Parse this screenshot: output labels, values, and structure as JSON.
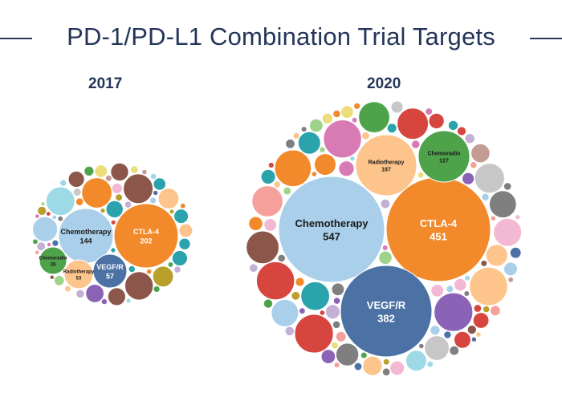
{
  "title": "PD-1/PD-L1 Combination Trial Targets",
  "chart_data": [
    {
      "type": "bubble",
      "title": "2017",
      "labeled_bubbles": [
        {
          "label": "Chemotherapy",
          "value": 144,
          "color": "#a9cfea"
        },
        {
          "label": "CTLA-4",
          "value": 202,
          "color": "#f28a2b"
        },
        {
          "label": "VEGF/R",
          "value": 57,
          "color": "#4c72a5"
        },
        {
          "label": "Radiotherapy",
          "value": 53,
          "color": "#fdc48c"
        },
        {
          "label": "Chemoradio",
          "value": 38,
          "color": "#4ea24a"
        }
      ]
    },
    {
      "type": "bubble",
      "title": "2020",
      "labeled_bubbles": [
        {
          "label": "Chemotherapy",
          "value": 547,
          "color": "#a9cfea"
        },
        {
          "label": "CTLA-4",
          "value": 451,
          "color": "#f28a2b"
        },
        {
          "label": "VEGF/R",
          "value": 382,
          "color": "#4c72a5"
        },
        {
          "label": "Radiotherapy",
          "value": 187,
          "color": "#fdc48c"
        },
        {
          "label": "Chemoradio",
          "value": 127,
          "color": "#4ea24a"
        }
      ]
    }
  ],
  "palette": [
    "#4c72a5",
    "#f28a2b",
    "#a9cfea",
    "#fdc48c",
    "#4ea24a",
    "#9ed48a",
    "#d6463f",
    "#f5a09b",
    "#8a63b6",
    "#c5b0d5",
    "#8c564b",
    "#c49c94",
    "#d87bb4",
    "#f3b9d2",
    "#7f7f7f",
    "#c7c7c7",
    "#b8a02a",
    "#ecdd7a",
    "#2aa3ad",
    "#9ddae5"
  ]
}
